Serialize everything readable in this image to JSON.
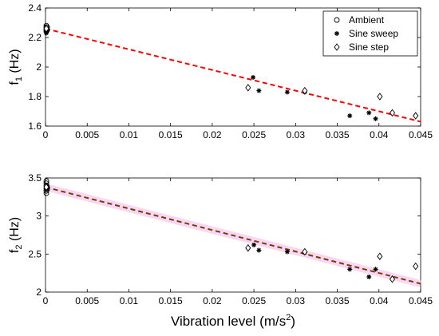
{
  "chart_data": [
    {
      "type": "scatter",
      "ylabel": "f",
      "ylabel_sub": "1",
      "ylabel_unit": " (Hz)",
      "xlim": [
        0,
        0.045
      ],
      "ylim": [
        1.6,
        2.4
      ],
      "xticks": [
        "0",
        "0.005",
        "0.01",
        "0.015",
        "0.02",
        "0.025",
        "0.03",
        "0.035",
        "0.04",
        "0.045"
      ],
      "yticks": [
        "1.6",
        "1.8",
        "2",
        "2.2",
        "2.4"
      ],
      "legend": {
        "position": "top-right",
        "entries": [
          "Ambient",
          "Sine sweep",
          "Sine step"
        ]
      },
      "fit": {
        "x": [
          0,
          0.045
        ],
        "y": [
          2.26,
          1.63
        ],
        "color": "#ff0000",
        "style": "dashed"
      },
      "series": [
        {
          "name": "Ambient",
          "marker": "circle",
          "color": "#000000",
          "points": [
            [
              0.0001,
              2.24
            ],
            [
              0.0001,
              2.25
            ],
            [
              0.0001,
              2.26
            ],
            [
              0.0001,
              2.27
            ],
            [
              0.0001,
              2.28
            ],
            [
              0.0002,
              2.25
            ],
            [
              0.0002,
              2.27
            ]
          ]
        },
        {
          "name": "Sine sweep",
          "marker": "star",
          "color": "#000000",
          "points": [
            [
              0.0001,
              2.23
            ],
            [
              0.0002,
              2.25
            ],
            [
              0.0249,
              1.93
            ],
            [
              0.0256,
              1.84
            ],
            [
              0.029,
              1.83
            ],
            [
              0.0311,
              1.83
            ],
            [
              0.0365,
              1.67
            ],
            [
              0.0388,
              1.69
            ],
            [
              0.0396,
              1.65
            ]
          ]
        },
        {
          "name": "Sine step",
          "marker": "diamond",
          "color": "#000000",
          "points": [
            [
              0.0001,
              2.26
            ],
            [
              0.0243,
              1.86
            ],
            [
              0.0311,
              1.84
            ],
            [
              0.0401,
              1.8
            ],
            [
              0.0416,
              1.69
            ],
            [
              0.0444,
              1.67
            ]
          ]
        }
      ]
    },
    {
      "type": "scatter",
      "xlabel": "Vibration level (m/s",
      "xlabel_sup": "2",
      "xlabel_end": ")",
      "ylabel": "f",
      "ylabel_sub": "2",
      "ylabel_unit": " (Hz)",
      "xlim": [
        0,
        0.045
      ],
      "ylim": [
        2,
        3.5
      ],
      "xticks": [
        "0",
        "0.005",
        "0.01",
        "0.015",
        "0.02",
        "0.025",
        "0.03",
        "0.035",
        "0.04",
        "0.045"
      ],
      "yticks": [
        "2",
        "2.5",
        "3",
        "3.5"
      ],
      "fit": {
        "x": [
          0,
          0.045
        ],
        "y": [
          3.38,
          2.11
        ],
        "color": "#7a3b00",
        "band_color": "#f4c6ee",
        "style": "dashed"
      },
      "series": [
        {
          "name": "Ambient",
          "marker": "circle",
          "color": "#000000",
          "points": [
            [
              0.0001,
              3.3
            ],
            [
              0.0001,
              3.33
            ],
            [
              0.0001,
              3.36
            ],
            [
              0.0001,
              3.4
            ],
            [
              0.0001,
              3.43
            ],
            [
              0.0001,
              3.46
            ],
            [
              0.0002,
              3.38
            ],
            [
              0.0002,
              3.35
            ]
          ]
        },
        {
          "name": "Sine sweep",
          "marker": "star",
          "color": "#000000",
          "points": [
            [
              0.0001,
              3.36
            ],
            [
              0.0002,
              3.4
            ],
            [
              0.025,
              2.62
            ],
            [
              0.0256,
              2.55
            ],
            [
              0.029,
              2.53
            ],
            [
              0.0311,
              2.52
            ],
            [
              0.0365,
              2.3
            ],
            [
              0.0388,
              2.2
            ],
            [
              0.0396,
              2.3
            ]
          ]
        },
        {
          "name": "Sine step",
          "marker": "diamond",
          "color": "#000000",
          "points": [
            [
              0.0001,
              3.38
            ],
            [
              0.0243,
              2.58
            ],
            [
              0.0311,
              2.53
            ],
            [
              0.0401,
              2.47
            ],
            [
              0.0416,
              2.17
            ],
            [
              0.0444,
              2.34
            ]
          ]
        }
      ]
    }
  ]
}
